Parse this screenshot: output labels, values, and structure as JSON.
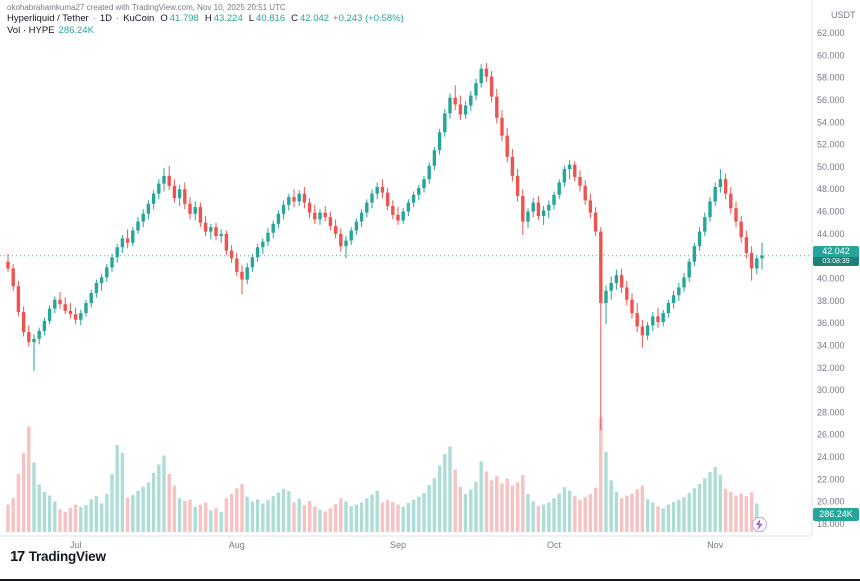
{
  "attribution": "okohabrahamkuma27 created with TradingView.com, Nov 10, 2025 20:51 UTC",
  "header": {
    "symbol": "Hyperliquid / Tether",
    "separator": "·",
    "interval": "1D",
    "exchange": "KuCoin",
    "ohlc": {
      "o_label": "O",
      "o": "41.798",
      "h_label": "H",
      "h": "43.224",
      "l_label": "L",
      "l": "40.816",
      "c_label": "C",
      "c": "42.042"
    },
    "change": "+0.243 (+0.58%)",
    "volume_label": "Vol · HYPE",
    "volume_value": "286.24K"
  },
  "price_axis": {
    "currency": "USDT",
    "last_price": "42.042",
    "countdown": "03:08:39",
    "volume_badge": "286.24K"
  },
  "logo": {
    "mark": "17",
    "text": "TradingView"
  },
  "colors": {
    "up": "#26a69a",
    "down": "#ef5350",
    "vol_up": "#aedcd6",
    "vol_down": "#f6c3c2",
    "axis_text": "#787b86",
    "axis_line": "#e0e3eb"
  },
  "chart_data": {
    "type": "candlestick",
    "title": "Hyperliquid / Tether · 1D · KuCoin",
    "ylabel": "USDT",
    "ylim": [
      18,
      62
    ],
    "y_ticks": [
      62,
      60,
      58,
      56,
      54,
      52,
      50,
      48,
      46,
      44,
      42,
      40,
      38,
      36,
      34,
      32,
      30,
      28,
      26,
      24,
      22,
      20,
      18
    ],
    "x_axis_months": [
      {
        "label": "Jul",
        "date": "07-01"
      },
      {
        "label": "Aug",
        "date": "08-01"
      },
      {
        "label": "Sep",
        "date": "09-01"
      },
      {
        "label": "Oct",
        "date": "10-01"
      },
      {
        "label": "Nov",
        "date": "11-01"
      }
    ],
    "last_close": 42.042,
    "last_volume_k": 286.24,
    "candle_fields": [
      "date",
      "open",
      "high",
      "low",
      "close",
      "volume_k"
    ],
    "candles": [
      [
        "06-18",
        41.5,
        42.2,
        40.6,
        40.9,
        520
      ],
      [
        "06-19",
        40.9,
        41.3,
        38.9,
        39.3,
        640
      ],
      [
        "06-20",
        39.3,
        39.8,
        36.6,
        37.0,
        1100
      ],
      [
        "06-21",
        37.0,
        37.5,
        34.8,
        35.2,
        1500
      ],
      [
        "06-22",
        35.2,
        35.8,
        33.9,
        34.3,
        2000
      ],
      [
        "06-23",
        34.3,
        35.0,
        31.7,
        34.6,
        1320
      ],
      [
        "06-24",
        34.6,
        35.6,
        34.1,
        35.3,
        900
      ],
      [
        "06-25",
        35.3,
        36.5,
        34.9,
        36.2,
        760
      ],
      [
        "06-26",
        36.2,
        37.6,
        35.9,
        37.3,
        690
      ],
      [
        "06-27",
        37.3,
        38.4,
        36.9,
        38.1,
        580
      ],
      [
        "06-28",
        38.1,
        38.8,
        37.3,
        37.7,
        430
      ],
      [
        "06-29",
        37.7,
        38.3,
        36.8,
        37.1,
        380
      ],
      [
        "06-30",
        37.1,
        37.8,
        36.4,
        36.8,
        460
      ],
      [
        "07-01",
        36.8,
        37.4,
        35.9,
        36.3,
        520
      ],
      [
        "07-02",
        36.3,
        37.2,
        35.8,
        36.9,
        480
      ],
      [
        "07-03",
        36.9,
        38.1,
        36.6,
        37.8,
        510
      ],
      [
        "07-04",
        37.8,
        39.0,
        37.4,
        38.7,
        620
      ],
      [
        "07-05",
        38.7,
        39.9,
        38.3,
        39.6,
        680
      ],
      [
        "07-06",
        39.6,
        40.4,
        38.9,
        40.1,
        540
      ],
      [
        "07-07",
        40.1,
        41.3,
        39.7,
        41.0,
        720
      ],
      [
        "07-08",
        41.0,
        42.2,
        40.6,
        41.9,
        1100
      ],
      [
        "07-09",
        41.9,
        43.1,
        41.4,
        42.8,
        1650
      ],
      [
        "07-10",
        42.8,
        43.9,
        42.3,
        43.6,
        1500
      ],
      [
        "07-11",
        43.6,
        44.4,
        42.7,
        43.2,
        650
      ],
      [
        "07-12",
        43.2,
        44.6,
        42.9,
        44.3,
        700
      ],
      [
        "07-13",
        44.3,
        45.5,
        44.0,
        45.1,
        780
      ],
      [
        "07-14",
        45.1,
        46.2,
        44.6,
        45.8,
        860
      ],
      [
        "07-15",
        45.8,
        47.0,
        45.3,
        46.7,
        940
      ],
      [
        "07-16",
        46.7,
        47.9,
        46.2,
        47.6,
        1120
      ],
      [
        "07-17",
        47.6,
        48.9,
        47.1,
        48.5,
        1280
      ],
      [
        "07-18",
        48.5,
        49.9,
        47.8,
        49.2,
        1450
      ],
      [
        "07-19",
        49.2,
        50.1,
        47.9,
        48.3,
        1100
      ],
      [
        "07-20",
        48.3,
        48.9,
        46.8,
        47.2,
        880
      ],
      [
        "07-21",
        47.2,
        48.4,
        46.5,
        48.0,
        640
      ],
      [
        "07-22",
        48.0,
        48.6,
        46.2,
        46.7,
        590
      ],
      [
        "07-23",
        46.7,
        47.3,
        45.3,
        45.8,
        610
      ],
      [
        "07-24",
        45.8,
        46.9,
        45.2,
        46.4,
        480
      ],
      [
        "07-25",
        46.4,
        46.8,
        44.6,
        45.0,
        520
      ],
      [
        "07-26",
        45.0,
        45.6,
        43.8,
        44.2,
        560
      ],
      [
        "07-27",
        44.2,
        44.9,
        43.5,
        44.6,
        410
      ],
      [
        "07-28",
        44.6,
        45.0,
        43.4,
        43.8,
        450
      ],
      [
        "07-29",
        43.8,
        44.4,
        43.2,
        44.0,
        380
      ],
      [
        "07-30",
        44.0,
        44.3,
        42.1,
        42.5,
        640
      ],
      [
        "07-31",
        42.5,
        43.0,
        41.4,
        41.8,
        720
      ],
      [
        "08-01",
        41.8,
        42.3,
        40.2,
        40.6,
        830
      ],
      [
        "08-02",
        40.6,
        41.2,
        38.6,
        39.9,
        910
      ],
      [
        "08-03",
        39.9,
        41.4,
        39.5,
        41.0,
        670
      ],
      [
        "08-04",
        41.0,
        42.2,
        40.6,
        41.9,
        580
      ],
      [
        "08-05",
        41.9,
        43.1,
        41.5,
        42.8,
        620
      ],
      [
        "08-06",
        42.8,
        43.6,
        42.2,
        43.3,
        540
      ],
      [
        "08-07",
        43.3,
        44.5,
        42.9,
        44.1,
        610
      ],
      [
        "08-08",
        44.1,
        45.2,
        43.6,
        44.9,
        680
      ],
      [
        "08-09",
        44.9,
        46.1,
        44.5,
        45.8,
        750
      ],
      [
        "08-10",
        45.8,
        47.0,
        45.3,
        46.6,
        820
      ],
      [
        "08-11",
        46.6,
        47.6,
        46.1,
        47.3,
        780
      ],
      [
        "08-12",
        47.3,
        48.0,
        46.4,
        46.9,
        560
      ],
      [
        "08-13",
        46.9,
        47.9,
        46.5,
        47.6,
        630
      ],
      [
        "08-14",
        47.6,
        48.2,
        46.3,
        46.8,
        510
      ],
      [
        "08-15",
        46.8,
        47.2,
        45.4,
        45.9,
        590
      ],
      [
        "08-16",
        45.9,
        46.6,
        44.9,
        45.3,
        480
      ],
      [
        "08-17",
        45.3,
        46.2,
        44.8,
        45.9,
        420
      ],
      [
        "08-18",
        45.9,
        46.5,
        45.1,
        45.5,
        390
      ],
      [
        "08-19",
        45.5,
        46.0,
        44.3,
        44.7,
        450
      ],
      [
        "08-20",
        44.7,
        45.3,
        43.6,
        44.0,
        530
      ],
      [
        "08-21",
        44.0,
        44.5,
        42.4,
        42.9,
        640
      ],
      [
        "08-22",
        42.9,
        43.8,
        41.8,
        43.4,
        580
      ],
      [
        "08-23",
        43.4,
        44.6,
        43.0,
        44.3,
        490
      ],
      [
        "08-24",
        44.3,
        45.4,
        43.9,
        45.1,
        520
      ],
      [
        "08-25",
        45.1,
        46.2,
        44.6,
        45.9,
        560
      ],
      [
        "08-26",
        45.9,
        47.1,
        45.5,
        46.8,
        640
      ],
      [
        "08-27",
        46.8,
        48.0,
        46.3,
        47.6,
        710
      ],
      [
        "08-28",
        47.6,
        48.6,
        47.1,
        48.2,
        780
      ],
      [
        "08-29",
        48.2,
        48.9,
        47.2,
        47.7,
        560
      ],
      [
        "08-30",
        47.7,
        48.1,
        46.1,
        46.5,
        610
      ],
      [
        "08-31",
        46.5,
        47.0,
        45.3,
        45.7,
        570
      ],
      [
        "09-01",
        45.7,
        46.4,
        44.8,
        45.2,
        520
      ],
      [
        "09-02",
        45.2,
        46.3,
        44.9,
        46.0,
        480
      ],
      [
        "09-03",
        46.0,
        47.1,
        45.6,
        46.8,
        550
      ],
      [
        "09-04",
        46.8,
        47.8,
        46.4,
        47.5,
        610
      ],
      [
        "09-05",
        47.5,
        48.4,
        47.0,
        48.1,
        670
      ],
      [
        "09-06",
        48.1,
        49.2,
        47.7,
        48.9,
        740
      ],
      [
        "09-07",
        48.9,
        50.4,
        48.5,
        50.1,
        890
      ],
      [
        "09-08",
        50.1,
        51.8,
        49.7,
        51.5,
        1020
      ],
      [
        "09-09",
        51.5,
        53.4,
        51.1,
        53.1,
        1260
      ],
      [
        "09-10",
        53.1,
        55.2,
        52.7,
        54.8,
        1480
      ],
      [
        "09-11",
        54.8,
        56.6,
        54.3,
        56.2,
        1620
      ],
      [
        "09-12",
        56.2,
        57.3,
        55.1,
        55.6,
        1180
      ],
      [
        "09-13",
        55.6,
        56.4,
        54.2,
        54.7,
        860
      ],
      [
        "09-14",
        54.7,
        55.9,
        54.3,
        55.5,
        720
      ],
      [
        "09-15",
        55.5,
        56.8,
        55.0,
        56.4,
        810
      ],
      [
        "09-16",
        56.4,
        57.9,
        56.0,
        57.5,
        950
      ],
      [
        "09-17",
        57.5,
        59.2,
        57.1,
        58.8,
        1340
      ],
      [
        "09-18",
        58.8,
        59.3,
        57.6,
        58.1,
        1150
      ],
      [
        "09-19",
        58.1,
        58.6,
        55.8,
        56.3,
        980
      ],
      [
        "09-20",
        56.3,
        57.0,
        53.9,
        54.4,
        1060
      ],
      [
        "09-21",
        54.4,
        55.1,
        52.3,
        52.8,
        920
      ],
      [
        "09-22",
        52.8,
        53.5,
        50.4,
        50.9,
        1010
      ],
      [
        "09-23",
        50.9,
        51.6,
        48.7,
        49.2,
        880
      ],
      [
        "09-24",
        49.2,
        49.8,
        46.9,
        47.4,
        940
      ],
      [
        "09-25",
        47.4,
        48.0,
        43.9,
        45.1,
        1080
      ],
      [
        "09-26",
        45.1,
        46.3,
        44.5,
        46.0,
        720
      ],
      [
        "09-27",
        46.0,
        47.2,
        45.5,
        46.8,
        580
      ],
      [
        "09-28",
        46.8,
        47.4,
        45.2,
        45.6,
        490
      ],
      [
        "09-29",
        45.6,
        46.5,
        44.8,
        46.1,
        520
      ],
      [
        "09-30",
        46.1,
        47.0,
        45.4,
        46.6,
        560
      ],
      [
        "10-01",
        46.6,
        47.8,
        46.2,
        47.5,
        640
      ],
      [
        "10-02",
        47.5,
        48.9,
        47.1,
        48.6,
        730
      ],
      [
        "10-03",
        48.6,
        50.1,
        48.2,
        49.8,
        850
      ],
      [
        "10-04",
        49.8,
        50.6,
        48.9,
        50.2,
        790
      ],
      [
        "10-05",
        50.2,
        50.5,
        48.7,
        49.1,
        680
      ],
      [
        "10-06",
        49.1,
        49.7,
        47.8,
        48.3,
        610
      ],
      [
        "10-07",
        48.3,
        48.8,
        46.6,
        47.0,
        660
      ],
      [
        "10-08",
        47.0,
        47.6,
        45.4,
        45.9,
        720
      ],
      [
        "10-09",
        45.9,
        46.4,
        43.8,
        44.2,
        840
      ],
      [
        "10-10",
        44.2,
        44.6,
        26.4,
        37.8,
        2180
      ],
      [
        "10-11",
        37.8,
        39.4,
        35.9,
        38.9,
        1520
      ],
      [
        "10-12",
        38.9,
        40.2,
        38.1,
        39.6,
        980
      ],
      [
        "10-13",
        39.6,
        40.8,
        39.0,
        40.3,
        760
      ],
      [
        "10-14",
        40.3,
        40.9,
        38.7,
        39.2,
        640
      ],
      [
        "10-15",
        39.2,
        39.8,
        37.6,
        38.1,
        690
      ],
      [
        "10-16",
        38.1,
        38.7,
        36.4,
        36.9,
        730
      ],
      [
        "10-17",
        36.9,
        37.8,
        35.2,
        35.7,
        810
      ],
      [
        "10-18",
        35.7,
        36.3,
        33.8,
        34.9,
        880
      ],
      [
        "10-19",
        34.9,
        36.1,
        34.5,
        35.8,
        620
      ],
      [
        "10-20",
        35.8,
        37.0,
        35.3,
        36.6,
        560
      ],
      [
        "10-21",
        36.6,
        37.4,
        35.6,
        36.1,
        490
      ],
      [
        "10-22",
        36.1,
        37.2,
        35.7,
        36.9,
        450
      ],
      [
        "10-23",
        36.9,
        38.1,
        36.5,
        37.8,
        520
      ],
      [
        "10-24",
        37.8,
        38.9,
        37.3,
        38.5,
        570
      ],
      [
        "10-25",
        38.5,
        39.6,
        38.0,
        39.2,
        610
      ],
      [
        "10-26",
        39.2,
        40.5,
        38.8,
        40.1,
        660
      ],
      [
        "10-27",
        40.1,
        41.8,
        39.7,
        41.5,
        740
      ],
      [
        "10-28",
        41.5,
        43.2,
        41.1,
        42.9,
        830
      ],
      [
        "10-29",
        42.9,
        44.6,
        42.5,
        44.2,
        910
      ],
      [
        "10-30",
        44.2,
        45.9,
        43.8,
        45.5,
        1020
      ],
      [
        "10-31",
        45.5,
        47.3,
        45.1,
        46.9,
        1140
      ],
      [
        "11-01",
        46.9,
        48.6,
        46.5,
        48.2,
        1230
      ],
      [
        "11-02",
        48.2,
        49.8,
        47.7,
        48.9,
        1080
      ],
      [
        "11-03",
        48.9,
        49.4,
        47.1,
        47.6,
        820
      ],
      [
        "11-04",
        47.6,
        48.2,
        45.8,
        46.3,
        760
      ],
      [
        "11-05",
        46.3,
        46.9,
        44.6,
        45.1,
        690
      ],
      [
        "11-06",
        45.1,
        45.6,
        43.2,
        43.7,
        730
      ],
      [
        "11-07",
        43.7,
        44.3,
        41.8,
        42.3,
        680
      ],
      [
        "11-08",
        42.3,
        42.9,
        39.8,
        40.9,
        750
      ],
      [
        "11-09",
        40.9,
        42.1,
        40.4,
        41.8,
        540
      ],
      [
        "11-10",
        41.798,
        43.224,
        40.816,
        42.042,
        286.24
      ]
    ]
  }
}
